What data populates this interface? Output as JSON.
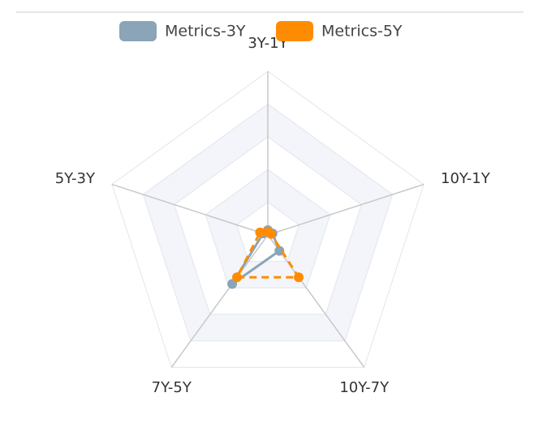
{
  "chart_data": {
    "type": "radar",
    "indicators": [
      "3Y-1Y",
      "10Y-1Y",
      "10Y-7Y",
      "7Y-5Y",
      "5Y-3Y"
    ],
    "rlim": [
      0,
      100
    ],
    "series": [
      {
        "name": "Metrics-3Y",
        "color": "#8aa4b8",
        "line_style": "solid",
        "values": [
          3,
          3,
          12,
          37,
          3
        ]
      },
      {
        "name": "Metrics-5Y",
        "color": "#ff8c00",
        "line_style": "dashed",
        "values": [
          2,
          2,
          32,
          32,
          5
        ]
      }
    ]
  }
}
